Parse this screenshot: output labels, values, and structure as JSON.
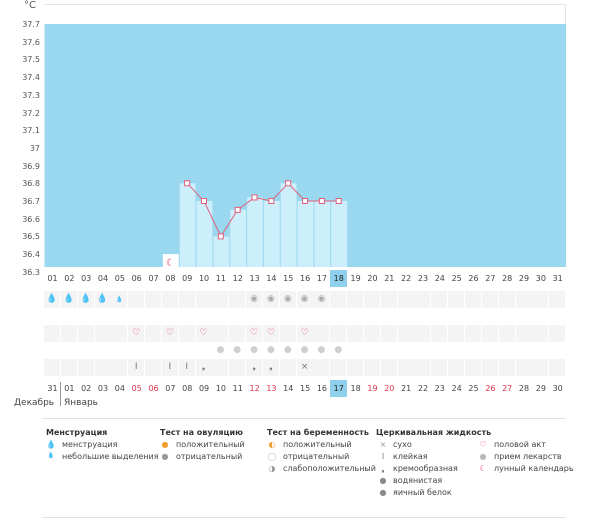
{
  "chart_data": {
    "type": "line",
    "unit_label": "°C",
    "y_ticks": [
      "37.7",
      "37.6",
      "37.5",
      "37.4",
      "37.3",
      "37.2",
      "37.1",
      "37",
      "36.9",
      "36.8",
      "36.7",
      "36.6",
      "36.5",
      "36.4",
      "36.3"
    ],
    "ylim": [
      36.3,
      37.7
    ],
    "days_top": [
      "01",
      "02",
      "03",
      "04",
      "05",
      "06",
      "07",
      "08",
      "09",
      "10",
      "11",
      "12",
      "13",
      "14",
      "15",
      "16",
      "17",
      "18",
      "19",
      "20",
      "21",
      "22",
      "23",
      "24",
      "25",
      "26",
      "27",
      "28",
      "29",
      "30",
      "31"
    ],
    "today_index": 17,
    "temperature": [
      {
        "day_index": 8,
        "value": 36.8
      },
      {
        "day_index": 9,
        "value": 36.7
      },
      {
        "day_index": 10,
        "value": 36.5
      },
      {
        "day_index": 11,
        "value": 36.65
      },
      {
        "day_index": 12,
        "value": 36.72
      },
      {
        "day_index": 13,
        "value": 36.7
      },
      {
        "day_index": 14,
        "value": 36.8
      },
      {
        "day_index": 15,
        "value": 36.7
      },
      {
        "day_index": 16,
        "value": 36.7
      },
      {
        "day_index": 17,
        "value": 36.7
      }
    ],
    "moon_day_index": 7,
    "moon_value": 36.4
  },
  "row_menstruation": [
    0,
    1,
    2,
    3,
    4
  ],
  "row_menstruation_light": [
    4
  ],
  "row_ovulation_test": [
    12,
    13,
    14,
    15,
    16
  ],
  "row_intercourse": [
    5,
    7,
    9,
    12,
    13,
    15
  ],
  "row_medication": [
    10,
    11,
    12,
    13,
    14,
    15,
    16,
    17
  ],
  "row_cervical": [
    {
      "day_index": 5,
      "glyph": "sticky"
    },
    {
      "day_index": 7,
      "glyph": "sticky"
    },
    {
      "day_index": 8,
      "glyph": "sticky"
    },
    {
      "day_index": 9,
      "glyph": "creamy"
    },
    {
      "day_index": 12,
      "glyph": "creamy"
    },
    {
      "day_index": 13,
      "glyph": "creamy"
    },
    {
      "day_index": 15,
      "glyph": "dry"
    }
  ],
  "days_bottom": [
    "31",
    "01",
    "02",
    "03",
    "04",
    "05",
    "06",
    "07",
    "08",
    "09",
    "10",
    "11",
    "12",
    "13",
    "14",
    "15",
    "16",
    "17",
    "18",
    "19",
    "20",
    "21",
    "22",
    "23",
    "24",
    "25",
    "26",
    "27",
    "28",
    "29",
    "30"
  ],
  "days_bottom_red": [
    5,
    6,
    12,
    13,
    19,
    20,
    26,
    27
  ],
  "today_bottom_index": 17,
  "month_prev": "Декабрь",
  "month_current": "Январь",
  "legend": {
    "menstruation": {
      "title": "Менструация",
      "items": [
        "менструация",
        "небольшие выделения"
      ]
    },
    "ovulation": {
      "title": "Тест на овуляцию",
      "items": [
        "положительный",
        "отрицательный"
      ]
    },
    "pregnancy": {
      "title": "Тест на беременность",
      "items": [
        "положительный",
        "отрицательный",
        "слабоположительный"
      ]
    },
    "cervical": {
      "title": "Церкивальная жидкость",
      "items": [
        "сухо",
        "клейкая",
        "кремообразная",
        "водянистая",
        "яичный белок"
      ]
    },
    "other": {
      "items": [
        "половой акт",
        "прием лекарств",
        "лунный календарь"
      ]
    }
  },
  "colors": {
    "plot_bg": "#9ad8f0",
    "bar": "#cdeefb",
    "line": "#e0607a",
    "red_day": "#e0304a",
    "today": "#8fd0ec"
  }
}
